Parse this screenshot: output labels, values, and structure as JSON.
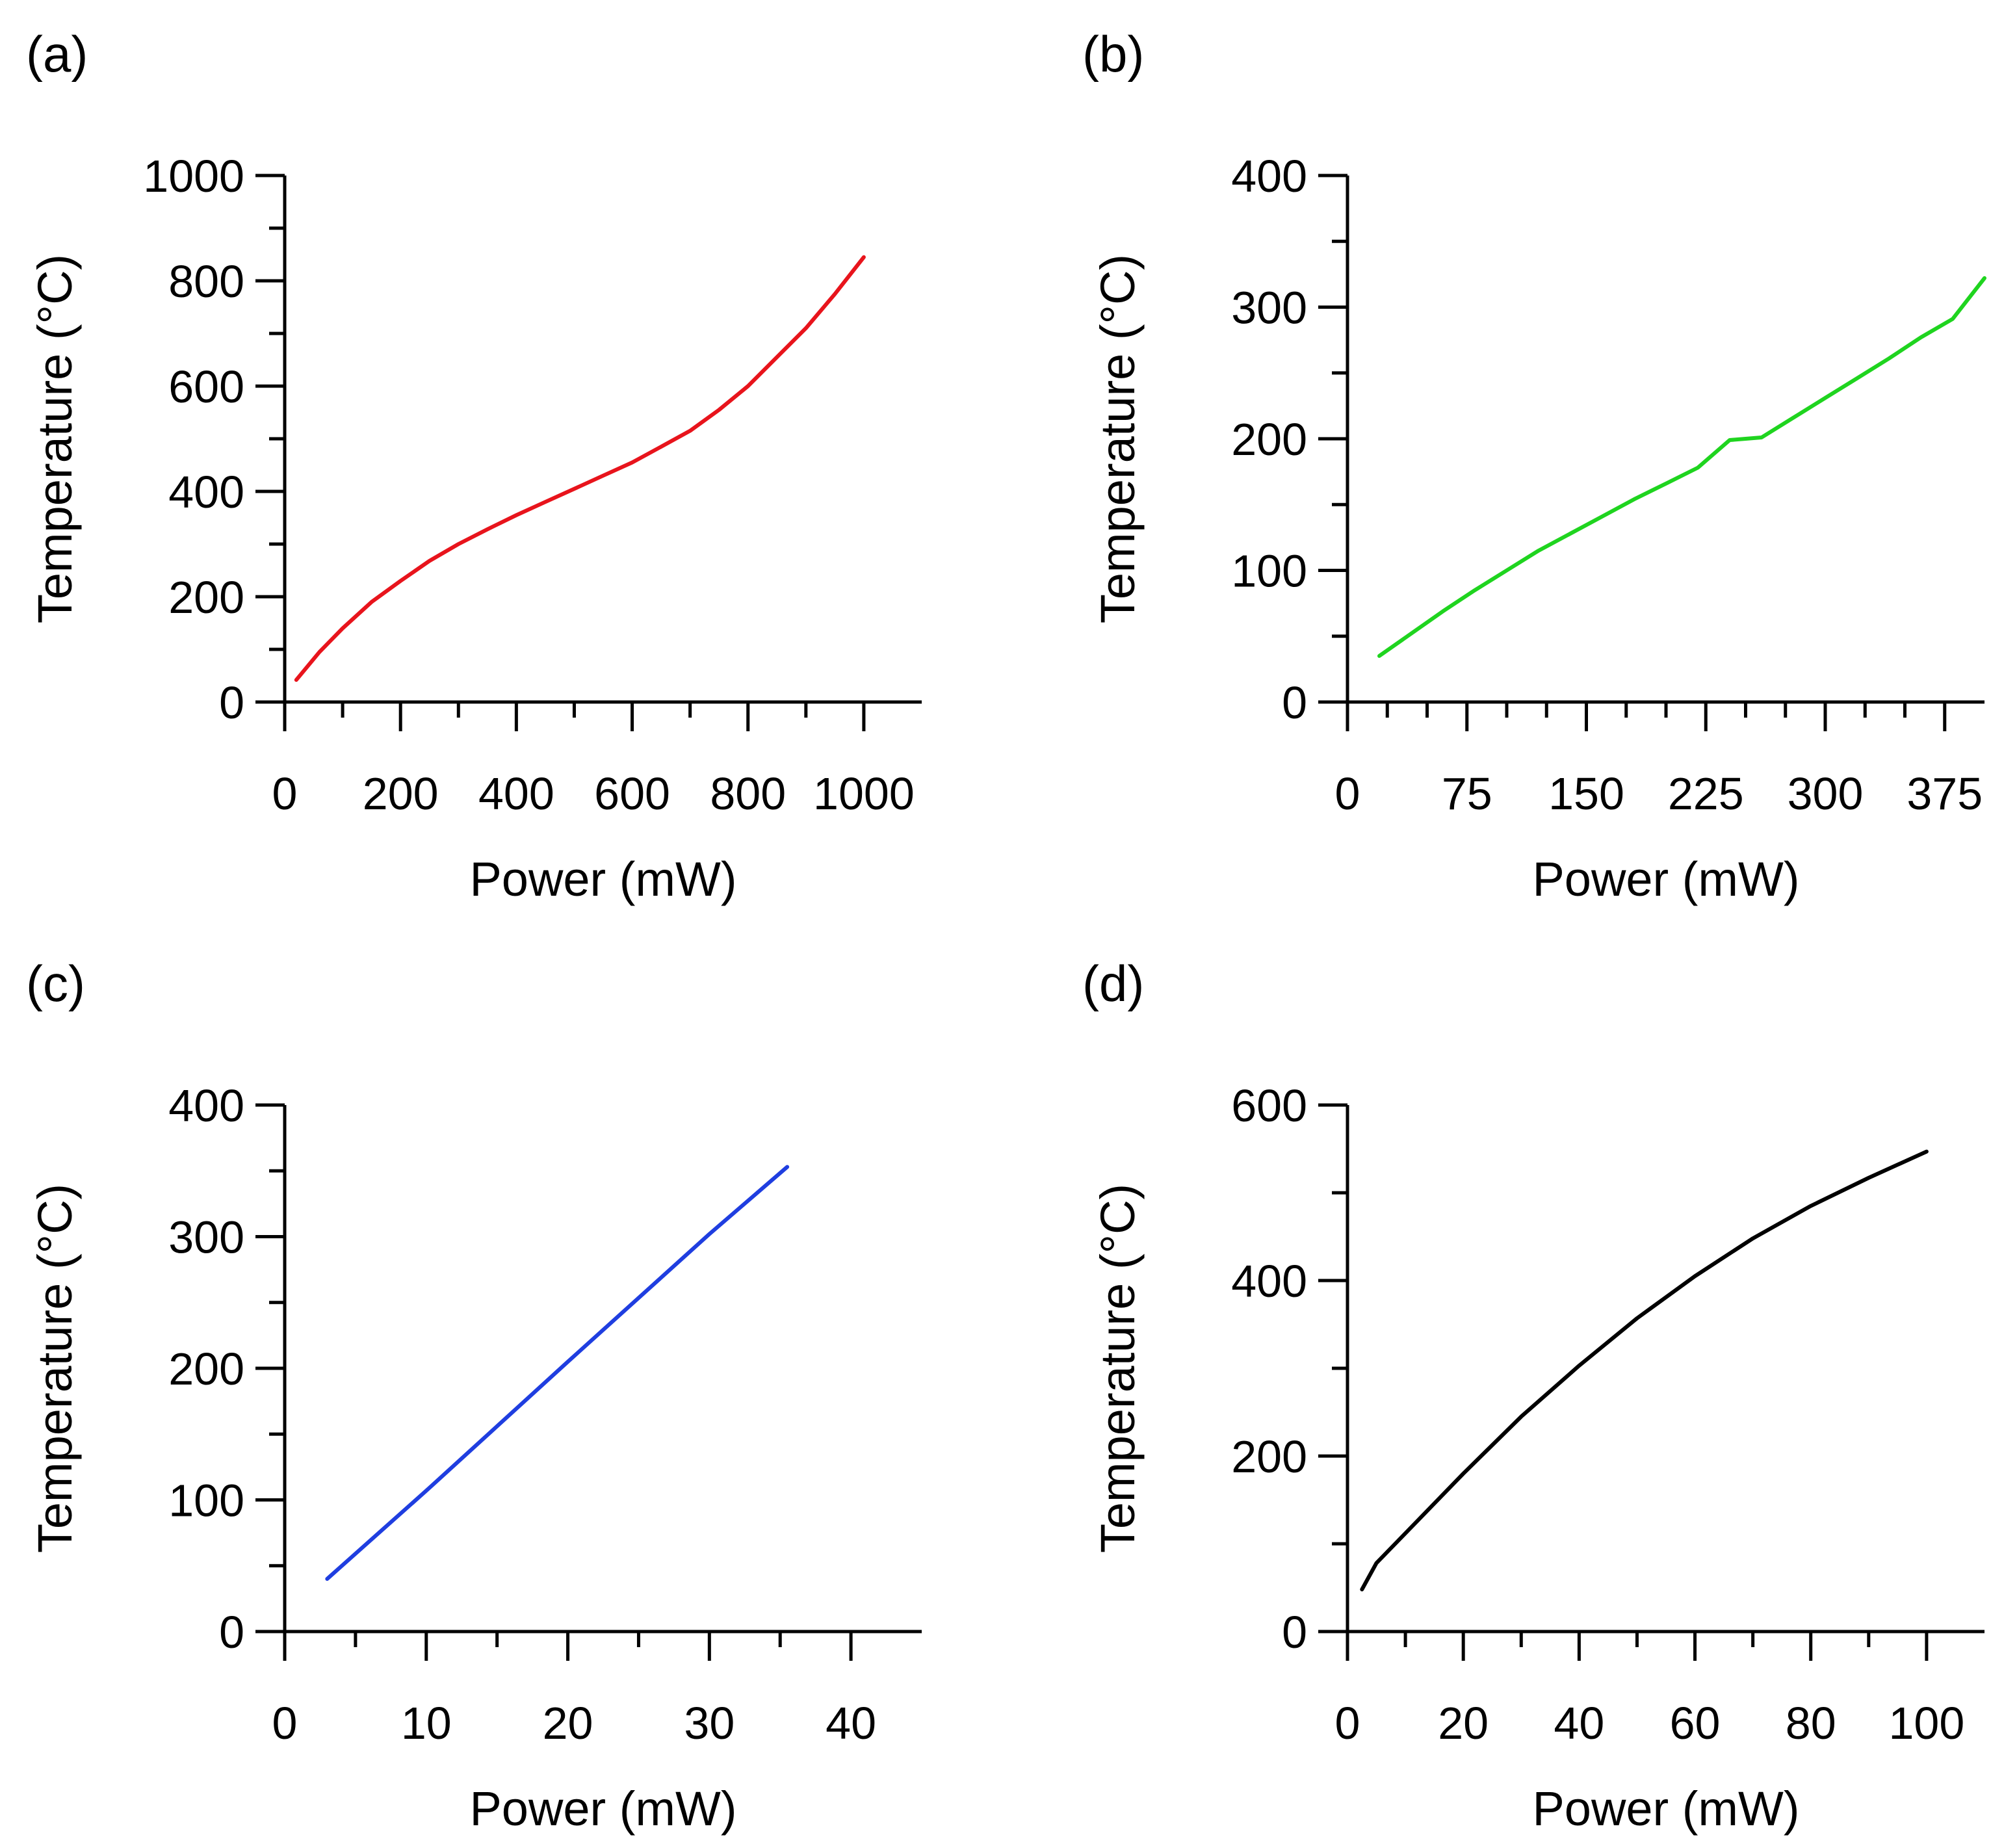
{
  "chart_data": [
    {
      "panel_label": "(a)",
      "type": "line",
      "xlabel": "Power (mW)",
      "ylabel": "Temperature (°C)",
      "xlim": [
        0,
        1100
      ],
      "ylim": [
        0,
        1000
      ],
      "xticks": [
        0,
        200,
        400,
        600,
        800,
        1000
      ],
      "xtick_labels": [
        "0",
        "200",
        "400",
        "600",
        "800",
        "1000"
      ],
      "xminor": [
        100,
        300,
        500,
        700,
        900
      ],
      "yticks": [
        0,
        200,
        400,
        600,
        800,
        1000
      ],
      "ytick_labels": [
        "0",
        "200",
        "400",
        "600",
        "800",
        "1000"
      ],
      "yminor": [
        100,
        300,
        500,
        700,
        900
      ],
      "series": [
        {
          "name": "(a)",
          "color": "#e8141c",
          "x": [
            20,
            60,
            100,
            150,
            200,
            250,
            300,
            350,
            400,
            450,
            500,
            550,
            600,
            650,
            700,
            750,
            800,
            850,
            900,
            950,
            1000
          ],
          "y": [
            42,
            95,
            140,
            190,
            230,
            268,
            300,
            328,
            355,
            380,
            405,
            430,
            455,
            485,
            515,
            555,
            600,
            655,
            710,
            775,
            845
          ]
        }
      ]
    },
    {
      "panel_label": "(b)",
      "type": "line",
      "xlabel": "Power (mW)",
      "ylabel": "Temperature (°C)",
      "xlim": [
        0,
        400
      ],
      "ylim": [
        0,
        400
      ],
      "xticks": [
        0,
        75,
        150,
        225,
        300,
        375
      ],
      "xtick_labels": [
        "0",
        "75",
        "150",
        "225",
        "300",
        "375"
      ],
      "xminor": [
        25,
        50,
        100,
        125,
        175,
        200,
        250,
        275,
        325,
        350
      ],
      "yticks": [
        0,
        100,
        200,
        300,
        400
      ],
      "ytick_labels": [
        "0",
        "100",
        "200",
        "300",
        "400"
      ],
      "yminor": [
        50,
        150,
        250,
        350
      ],
      "series": [
        {
          "name": "(b)",
          "color": "#1fd41f",
          "x": [
            20,
            40,
            60,
            80,
            100,
            120,
            140,
            160,
            180,
            200,
            220,
            240,
            250,
            260,
            280,
            300,
            320,
            340,
            360,
            380,
            400
          ],
          "y": [
            35,
            52,
            69,
            85,
            100,
            115,
            128,
            141,
            154,
            166,
            178,
            199,
            200,
            201,
            216,
            231,
            246,
            261,
            277,
            291,
            322
          ]
        }
      ]
    },
    {
      "panel_label": "(c)",
      "type": "line",
      "xlabel": "Power (mW)",
      "ylabel": "Temperature (°C)",
      "xlim": [
        0,
        45
      ],
      "ylim": [
        0,
        400
      ],
      "xticks": [
        0,
        10,
        20,
        30,
        40
      ],
      "xtick_labels": [
        "0",
        "10",
        "20",
        "30",
        "40"
      ],
      "xminor": [
        5,
        15,
        25,
        35
      ],
      "yticks": [
        0,
        100,
        200,
        300,
        400
      ],
      "ytick_labels": [
        "0",
        "100",
        "200",
        "300",
        "400"
      ],
      "yminor": [
        50,
        150,
        250,
        350
      ],
      "series": [
        {
          "name": "(c)",
          "color": "#1f3ee0",
          "x": [
            3,
            10,
            20,
            30,
            35.5
          ],
          "y": [
            40,
            107,
            205,
            302,
            353
          ]
        }
      ]
    },
    {
      "panel_label": "(d)",
      "type": "line",
      "xlabel": "Power (mW)",
      "ylabel": "Temperature (°C)",
      "xlim": [
        0,
        110
      ],
      "ylim": [
        0,
        600
      ],
      "xticks": [
        0,
        20,
        40,
        60,
        80,
        100
      ],
      "xtick_labels": [
        "0",
        "20",
        "40",
        "60",
        "80",
        "100"
      ],
      "xminor": [
        10,
        30,
        50,
        70,
        90
      ],
      "yticks": [
        0,
        200,
        400,
        600
      ],
      "ytick_labels": [
        "0",
        "200",
        "400",
        "600"
      ],
      "yminor": [
        100,
        300,
        500
      ],
      "series": [
        {
          "name": "(d)",
          "color": "#000000",
          "x": [
            2.5,
            5,
            10,
            20,
            30,
            40,
            50,
            60,
            70,
            80,
            90,
            100
          ],
          "y": [
            48,
            78,
            112,
            180,
            245,
            303,
            357,
            405,
            448,
            485,
            517,
            547
          ]
        }
      ]
    }
  ]
}
